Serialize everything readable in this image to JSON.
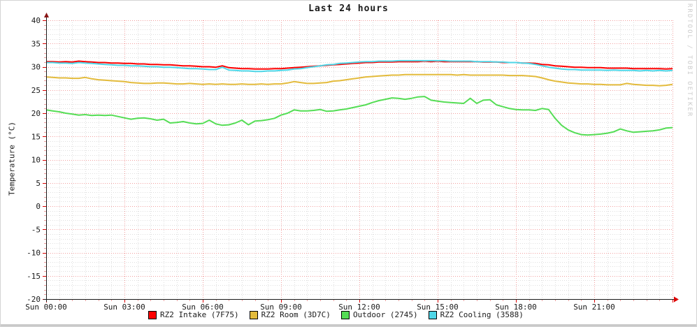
{
  "watermark": "RRDTOOL / TOBI OETIKER",
  "colors": {
    "background": "#ffffff",
    "grid_major": "#f29e9e",
    "grid_minor": "#dedede",
    "axis": "#1a1a1a",
    "x_arrow": "#dd0000",
    "y_arrow": "#8a1515",
    "tick_major": "#dd0000",
    "tick_minor": "#eda0a0",
    "label_text": "#1a1a1a",
    "watermark_text": "#cccccc"
  },
  "chart_data": {
    "type": "line",
    "title": "Last 24 hours",
    "xlabel": "",
    "ylabel": "Temperature (°C)",
    "ylim": [
      -20,
      40
    ],
    "y_major_step": 5,
    "y_minor_step": 1,
    "y_tick_labels": [
      "40",
      "35",
      "30",
      "25",
      "20",
      "15",
      "10",
      "5",
      "0",
      "-5",
      "-10",
      "-15",
      "-20"
    ],
    "x_hours_range": [
      0,
      24
    ],
    "x_major_step_hours": 3,
    "x_minor_step_hours": 0.5,
    "x_tick_labels": [
      "Sun 00:00",
      "Sun 03:00",
      "Sun 06:00",
      "Sun 09:00",
      "Sun 12:00",
      "Sun 15:00",
      "Sun 18:00",
      "Sun 21:00"
    ],
    "sample_interval_hours": 0.25,
    "grid": true,
    "legend_position": "bottom",
    "series": [
      {
        "name": "RZ2 Intake (7F75)",
        "color": "#ff0000",
        "values": [
          31.1,
          31.1,
          31.0,
          31.1,
          31.0,
          31.2,
          31.1,
          31.0,
          30.9,
          30.9,
          30.8,
          30.8,
          30.7,
          30.7,
          30.6,
          30.6,
          30.5,
          30.5,
          30.4,
          30.4,
          30.3,
          30.2,
          30.2,
          30.1,
          30.0,
          30.0,
          29.9,
          30.2,
          29.8,
          29.7,
          29.6,
          29.6,
          29.5,
          29.5,
          29.5,
          29.6,
          29.6,
          29.7,
          29.8,
          29.9,
          30.0,
          30.1,
          30.2,
          30.3,
          30.4,
          30.5,
          30.6,
          30.7,
          30.8,
          30.9,
          30.9,
          31.0,
          31.0,
          31.0,
          31.1,
          31.1,
          31.1,
          31.1,
          31.2,
          31.1,
          31.2,
          31.1,
          31.1,
          31.1,
          31.1,
          31.1,
          31.1,
          31.0,
          31.0,
          31.0,
          30.9,
          30.9,
          30.9,
          30.8,
          30.8,
          30.7,
          30.5,
          30.4,
          30.2,
          30.1,
          30.0,
          29.9,
          29.9,
          29.8,
          29.8,
          29.8,
          29.7,
          29.7,
          29.7,
          29.7,
          29.6,
          29.6,
          29.6,
          29.6,
          29.6,
          29.5,
          29.6
        ]
      },
      {
        "name": "RZ2 Room (3D7C)",
        "color": "#e3bb3c",
        "values": [
          27.8,
          27.7,
          27.6,
          27.6,
          27.5,
          27.5,
          27.7,
          27.4,
          27.2,
          27.1,
          27.0,
          26.9,
          26.8,
          26.6,
          26.5,
          26.4,
          26.4,
          26.5,
          26.5,
          26.4,
          26.3,
          26.3,
          26.4,
          26.3,
          26.2,
          26.3,
          26.2,
          26.3,
          26.2,
          26.2,
          26.3,
          26.2,
          26.2,
          26.3,
          26.2,
          26.3,
          26.3,
          26.5,
          26.8,
          26.6,
          26.4,
          26.4,
          26.5,
          26.6,
          26.9,
          27.0,
          27.2,
          27.4,
          27.6,
          27.8,
          27.9,
          28.0,
          28.1,
          28.2,
          28.2,
          28.3,
          28.3,
          28.3,
          28.3,
          28.3,
          28.3,
          28.3,
          28.3,
          28.2,
          28.3,
          28.2,
          28.2,
          28.2,
          28.2,
          28.2,
          28.2,
          28.1,
          28.1,
          28.1,
          28.0,
          27.9,
          27.6,
          27.2,
          26.9,
          26.7,
          26.5,
          26.4,
          26.3,
          26.3,
          26.2,
          26.2,
          26.1,
          26.1,
          26.1,
          26.4,
          26.2,
          26.1,
          26.0,
          26.0,
          25.9,
          26.0,
          26.2
        ]
      },
      {
        "name": "Outdoor (2745)",
        "color": "#55dd55",
        "values": [
          20.7,
          20.5,
          20.3,
          20.0,
          19.8,
          19.6,
          19.7,
          19.5,
          19.6,
          19.5,
          19.6,
          19.3,
          19.0,
          18.7,
          18.9,
          19.0,
          18.8,
          18.5,
          18.7,
          17.9,
          18.0,
          18.2,
          17.9,
          17.7,
          17.8,
          18.5,
          17.7,
          17.4,
          17.5,
          17.9,
          18.5,
          17.5,
          18.3,
          18.4,
          18.6,
          18.9,
          19.6,
          20.0,
          20.7,
          20.5,
          20.5,
          20.6,
          20.8,
          20.4,
          20.5,
          20.7,
          20.9,
          21.2,
          21.5,
          21.8,
          22.3,
          22.7,
          23.0,
          23.3,
          23.2,
          23.0,
          23.2,
          23.5,
          23.6,
          22.8,
          22.6,
          22.4,
          22.3,
          22.2,
          22.1,
          23.2,
          22.1,
          22.8,
          22.9,
          21.8,
          21.4,
          21.0,
          20.8,
          20.7,
          20.7,
          20.6,
          21.0,
          20.8,
          18.9,
          17.4,
          16.4,
          15.8,
          15.4,
          15.3,
          15.4,
          15.5,
          15.7,
          16.0,
          16.6,
          16.2,
          15.9,
          16.0,
          16.1,
          16.2,
          16.4,
          16.8,
          16.9
        ]
      },
      {
        "name": "RZ2 Cooling (3588)",
        "color": "#4fd6e7",
        "values": [
          30.9,
          30.9,
          30.8,
          30.8,
          30.7,
          30.9,
          30.8,
          30.7,
          30.6,
          30.5,
          30.4,
          30.3,
          30.3,
          30.2,
          30.2,
          30.1,
          30.0,
          30.0,
          29.9,
          29.9,
          29.8,
          29.7,
          29.6,
          29.6,
          29.5,
          29.4,
          29.4,
          29.9,
          29.3,
          29.2,
          29.1,
          29.1,
          29.0,
          29.0,
          29.1,
          29.1,
          29.2,
          29.3,
          29.5,
          29.6,
          29.8,
          30.0,
          30.2,
          30.4,
          30.5,
          30.7,
          30.8,
          30.9,
          31.0,
          31.1,
          31.1,
          31.2,
          31.2,
          31.2,
          31.3,
          31.3,
          31.3,
          31.3,
          31.3,
          31.3,
          31.3,
          31.3,
          31.2,
          31.2,
          31.2,
          31.2,
          31.1,
          31.1,
          31.1,
          31.0,
          31.0,
          30.9,
          30.9,
          30.8,
          30.7,
          30.5,
          30.2,
          29.9,
          29.7,
          29.5,
          29.4,
          29.4,
          29.3,
          29.3,
          29.3,
          29.3,
          29.2,
          29.3,
          29.2,
          29.2,
          29.2,
          29.1,
          29.2,
          29.1,
          29.2,
          29.1,
          29.2
        ]
      }
    ]
  }
}
